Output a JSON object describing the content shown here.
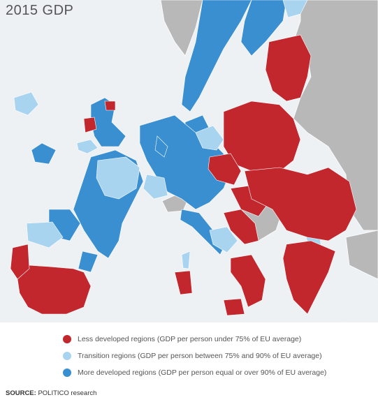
{
  "title": "2015 GDP",
  "colors": {
    "less_developed": "#c1272d",
    "transition": "#a9d4f0",
    "more_developed": "#3a8fd0",
    "non_eu": "#b8b8b8",
    "sea": "#eef1f4",
    "border": "#ffffff"
  },
  "legend": [
    {
      "label": "Less developed regions (GDP per person under 75% of EU average)",
      "color": "#c1272d"
    },
    {
      "label": "Transition regions (GDP per person between 75% and 90% of EU average)",
      "color": "#a9d4f0"
    },
    {
      "label": "More developed regions (GDP per person equal or over 90% of EU average)",
      "color": "#3a8fd0"
    }
  ],
  "source": {
    "prefix": "SOURCE:",
    "text": " POLITICO research"
  }
}
